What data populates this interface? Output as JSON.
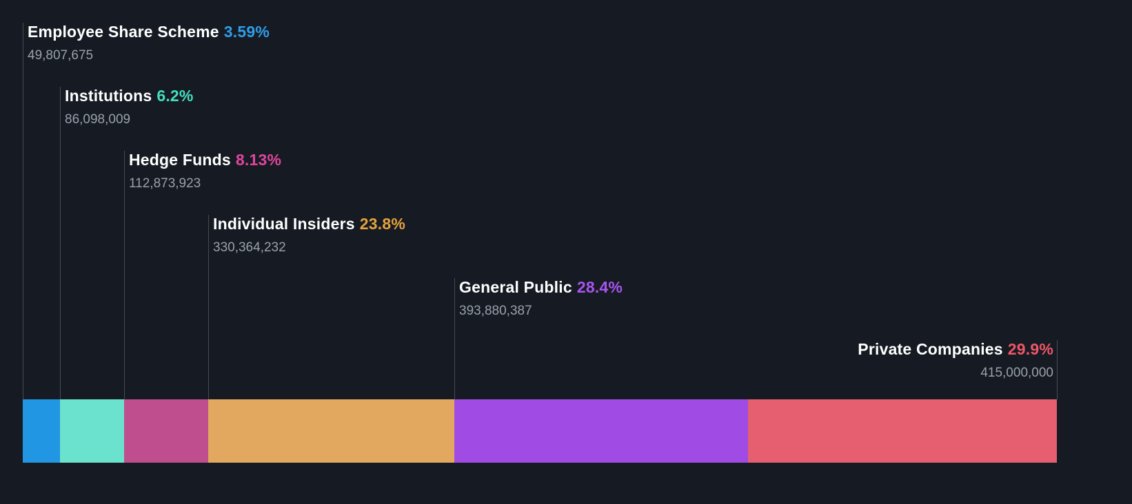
{
  "chart_data": {
    "type": "bar",
    "variant": "horizontal-stacked-ownership",
    "legend_position": "labels-above-segments-with-leader-lines",
    "total_percent": 100,
    "segments": [
      {
        "label": "Employee Share Scheme",
        "percent": 3.59,
        "percent_label": "3.59%",
        "shares": "49,807,675",
        "bar_color": "#2196e3",
        "pct_color": "#2f9de8"
      },
      {
        "label": "Institutions",
        "percent": 6.2,
        "percent_label": "6.2%",
        "shares": "86,098,009",
        "bar_color": "#6be2cd",
        "pct_color": "#45debe"
      },
      {
        "label": "Hedge Funds",
        "percent": 8.13,
        "percent_label": "8.13%",
        "shares": "112,873,923",
        "bar_color": "#bf4e8e",
        "pct_color": "#e0459c"
      },
      {
        "label": "Individual Insiders",
        "percent": 23.8,
        "percent_label": "23.8%",
        "shares": "330,364,232",
        "bar_color": "#e2a85f",
        "pct_color": "#e6a23c"
      },
      {
        "label": "General Public",
        "percent": 28.4,
        "percent_label": "28.4%",
        "shares": "393,880,387",
        "bar_color": "#a14be5",
        "pct_color": "#a855ef"
      },
      {
        "label": "Private Companies",
        "percent": 29.9,
        "percent_label": "29.9%",
        "shares": "415,000,000",
        "bar_color": "#e55f71",
        "pct_color": "#ef5668"
      }
    ]
  },
  "colors": {
    "background": "#161b23",
    "label_text": "#ffffff",
    "shares_text": "#99a1ab",
    "leader_line": "#454b54"
  }
}
